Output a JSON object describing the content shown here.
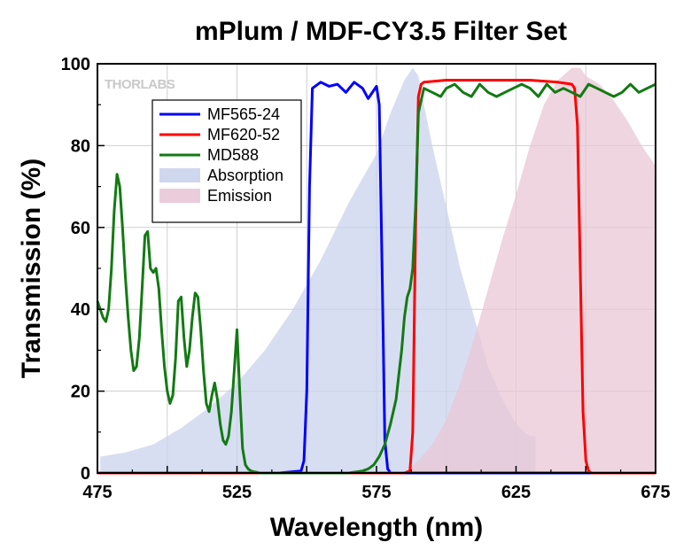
{
  "chart_data": {
    "type": "line",
    "title": "mPlum / MDF-CY3.5 Filter Set",
    "xlabel": "Wavelength (nm)",
    "ylabel": "Transmission (%)",
    "xlim": [
      475,
      675
    ],
    "ylim": [
      0,
      100
    ],
    "xticks": [
      "475",
      "525",
      "575",
      "625",
      "675"
    ],
    "yticks": [
      "0",
      "20",
      "40",
      "60",
      "80",
      "100"
    ],
    "grid": true,
    "legend_position": "top-left",
    "watermark": "THORLABS",
    "series": [
      {
        "name": "MF565-24",
        "kind": "line",
        "color": "#0000ff",
        "x": [
          475,
          540,
          548,
          549,
          550,
          551,
          552,
          555,
          558,
          561,
          564,
          567,
          570,
          572,
          574,
          575,
          576,
          577,
          578,
          579,
          580,
          600,
          675
        ],
        "y": [
          0,
          0,
          0.5,
          3,
          20,
          70,
          94,
          95.5,
          94.5,
          95,
          93,
          95.5,
          94,
          91.5,
          93.5,
          94.5,
          90,
          50,
          8,
          1,
          0,
          0,
          0
        ]
      },
      {
        "name": "MF620-52",
        "kind": "line",
        "color": "#ff0000",
        "x": [
          475,
          585,
          587,
          588,
          589,
          590,
          591,
          592,
          600,
          610,
          620,
          630,
          640,
          645,
          646,
          647,
          648,
          649,
          650,
          651,
          652,
          675
        ],
        "y": [
          0,
          0,
          0.5,
          10,
          60,
          92,
          95,
          95.5,
          96,
          96,
          96,
          96,
          95.5,
          95,
          94,
          85,
          50,
          15,
          3,
          0.5,
          0,
          0
        ]
      },
      {
        "name": "MD588",
        "kind": "line",
        "color": "#137a13",
        "x": [
          475,
          477,
          478,
          479,
          480,
          481,
          482,
          483,
          484,
          485,
          486,
          487,
          488,
          489,
          490,
          491,
          492,
          493,
          494,
          495,
          496,
          497,
          498,
          499,
          500,
          501,
          502,
          503,
          504,
          505,
          506,
          507,
          508,
          509,
          510,
          511,
          512,
          513,
          514,
          515,
          516,
          517,
          518,
          519,
          520,
          521,
          522,
          523,
          524,
          525,
          526,
          527,
          528,
          529,
          530,
          531,
          532,
          533,
          535,
          540,
          550,
          560,
          565,
          570,
          572,
          574,
          576,
          578,
          580,
          582,
          583,
          584,
          585,
          586,
          587,
          588,
          589,
          590,
          592,
          595,
          598,
          600,
          603,
          606,
          609,
          612,
          615,
          618,
          621,
          624,
          627,
          630,
          633,
          636,
          639,
          642,
          645,
          648,
          651,
          654,
          657,
          660,
          663,
          666,
          669,
          672,
          675
        ],
        "y": [
          42,
          38,
          37,
          40,
          50,
          64,
          73,
          70,
          60,
          48,
          38,
          30,
          25,
          26,
          33,
          45,
          58,
          59,
          50,
          49,
          50,
          45,
          35,
          26,
          20,
          17,
          19,
          28,
          42,
          43,
          33,
          26,
          30,
          38,
          44,
          43,
          35,
          25,
          17,
          15,
          19,
          22,
          18,
          12,
          8,
          7,
          9,
          15,
          25,
          35,
          20,
          6,
          2,
          1,
          0.5,
          0.3,
          0.2,
          0,
          0,
          0,
          0,
          0,
          0,
          0.5,
          1,
          2,
          4,
          7,
          12,
          18,
          24,
          30,
          38,
          43,
          45,
          50,
          65,
          88,
          94,
          93,
          92,
          94,
          95,
          93,
          92,
          95,
          93,
          92,
          93,
          94,
          95,
          94,
          92,
          95,
          93,
          94,
          93,
          92,
          95,
          94,
          93,
          92,
          93,
          95,
          93,
          94,
          95
        ]
      },
      {
        "name": "Absorption",
        "kind": "area",
        "color": "#c9d3ec",
        "x": [
          476,
          485,
          495,
          505,
          515,
          525,
          535,
          545,
          555,
          565,
          575,
          580,
          585,
          588,
          590,
          592,
          595,
          600,
          605,
          610,
          615,
          620,
          625,
          628,
          630,
          632
        ],
        "y": [
          4,
          5,
          7,
          11,
          16,
          22,
          30,
          40,
          52,
          66,
          78,
          88,
          96,
          99,
          97,
          90,
          80,
          65,
          50,
          38,
          26,
          18,
          12,
          10,
          9,
          9
        ]
      },
      {
        "name": "Emission",
        "kind": "area",
        "color": "#e9c7d6",
        "x": [
          585,
          590,
          595,
          600,
          605,
          610,
          615,
          620,
          625,
          630,
          635,
          640,
          645,
          648,
          650,
          655,
          660,
          665,
          670,
          675
        ],
        "y": [
          0,
          3,
          7,
          13,
          22,
          33,
          45,
          57,
          68,
          80,
          90,
          96,
          99,
          99,
          97,
          95,
          91,
          86,
          80,
          75
        ]
      }
    ]
  }
}
